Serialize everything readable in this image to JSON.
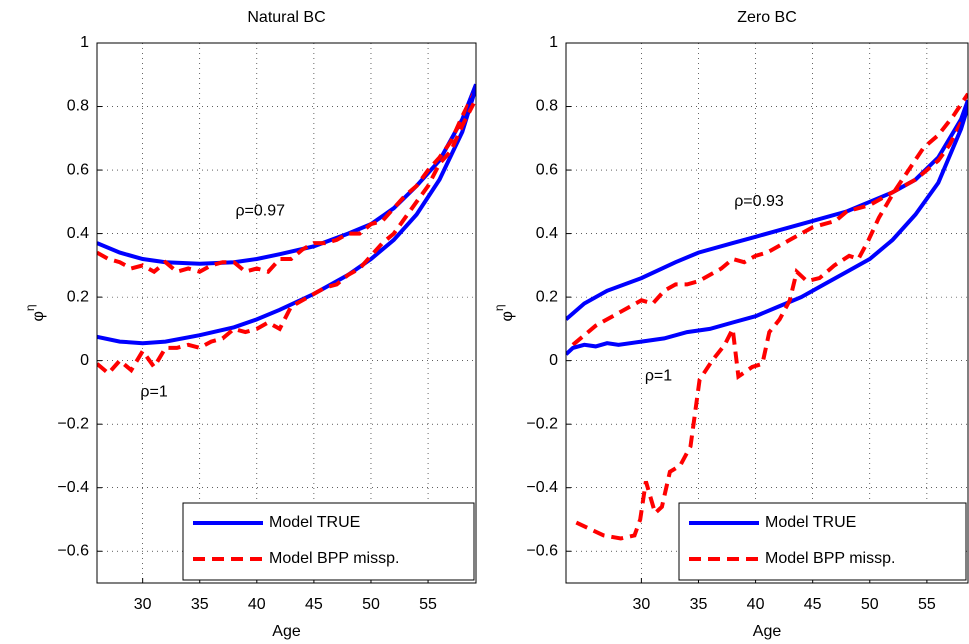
{
  "chart_data": [
    {
      "type": "line",
      "title": "Natural BC",
      "xlabel": "Age",
      "ylabel": "φ",
      "ylabel_superscript": "η",
      "xlim": [
        26,
        59.2
      ],
      "ylim": [
        -0.7,
        1
      ],
      "xticks": [
        30,
        35,
        40,
        45,
        50,
        55
      ],
      "yticks": [
        {
          "value": -0.6,
          "label": "−0.6"
        },
        {
          "value": -0.4,
          "label": "−0.4"
        },
        {
          "value": -0.2,
          "label": "−0.2"
        },
        0,
        0.2,
        0.4,
        0.6,
        0.8,
        1
      ],
      "grid": true,
      "legend": "lower right",
      "annotations": [
        "ρ=0.97",
        "ρ=1"
      ],
      "series": [
        {
          "name": "Model TRUE",
          "color": "#0000ff",
          "linestyle": "solid",
          "x": [
            26,
            28,
            30,
            32,
            35,
            38,
            40,
            42,
            45,
            48,
            50,
            52,
            54,
            56,
            58,
            59.2
          ],
          "values": [
            0.37,
            0.34,
            0.32,
            0.31,
            0.305,
            0.31,
            0.32,
            0.335,
            0.36,
            0.4,
            0.43,
            0.48,
            0.55,
            0.63,
            0.76,
            0.87
          ]
        },
        {
          "name": "Model BPP missp.",
          "color": "#ff0000",
          "linestyle": "dashed",
          "x": [
            26,
            27,
            28,
            29,
            30,
            31,
            32,
            33,
            34,
            35,
            36,
            37,
            38,
            39,
            40,
            41,
            42,
            43,
            44,
            45,
            46,
            47,
            48,
            49,
            50,
            51,
            52,
            53,
            54,
            55,
            56,
            57,
            58,
            59
          ],
          "values": [
            0.34,
            0.32,
            0.31,
            0.29,
            0.3,
            0.28,
            0.31,
            0.28,
            0.29,
            0.28,
            0.3,
            0.31,
            0.31,
            0.28,
            0.29,
            0.28,
            0.32,
            0.32,
            0.35,
            0.37,
            0.37,
            0.38,
            0.4,
            0.4,
            0.43,
            0.44,
            0.48,
            0.52,
            0.55,
            0.6,
            0.64,
            0.69,
            0.77,
            0.84
          ]
        },
        {
          "color": "#0000ff",
          "linestyle": "solid",
          "x": [
            26,
            28,
            30,
            32,
            35,
            38,
            40,
            42,
            45,
            48,
            50,
            52,
            54,
            56,
            58,
            59.2
          ],
          "values": [
            0.075,
            0.06,
            0.055,
            0.06,
            0.08,
            0.105,
            0.13,
            0.16,
            0.21,
            0.27,
            0.32,
            0.38,
            0.46,
            0.57,
            0.72,
            0.86
          ]
        },
        {
          "color": "#ff0000",
          "linestyle": "dashed",
          "x": [
            26,
            27,
            28,
            29,
            30,
            31,
            32,
            33,
            34,
            35,
            36,
            37,
            38,
            39,
            40,
            41,
            42,
            43,
            44,
            45,
            46,
            47,
            48,
            49,
            50,
            51,
            52,
            53,
            54,
            55,
            56,
            57,
            58,
            59
          ],
          "values": [
            -0.01,
            -0.04,
            0,
            -0.03,
            0.03,
            -0.02,
            0.04,
            0.04,
            0.05,
            0.04,
            0.06,
            0.07,
            0.1,
            0.09,
            0.1,
            0.12,
            0.1,
            0.17,
            0.19,
            0.21,
            0.23,
            0.24,
            0.27,
            0.29,
            0.33,
            0.37,
            0.4,
            0.45,
            0.5,
            0.55,
            0.62,
            0.66,
            0.74,
            0.81
          ]
        }
      ]
    },
    {
      "type": "line",
      "title": "Zero BC",
      "xlabel": "Age",
      "ylabel": "φ",
      "ylabel_superscript": "η",
      "xlim": [
        23.4,
        58.6
      ],
      "ylim": [
        -0.7,
        1
      ],
      "xticks": [
        30,
        35,
        40,
        45,
        50,
        55
      ],
      "yticks": [
        {
          "value": -0.6,
          "label": "−0.6"
        },
        {
          "value": -0.4,
          "label": "−0.4"
        },
        {
          "value": -0.2,
          "label": "−0.2"
        },
        0,
        0.2,
        0.4,
        0.6,
        0.8,
        1
      ],
      "grid": true,
      "legend": "lower right",
      "annotations": [
        "ρ=0.93",
        "ρ=1"
      ],
      "series": [
        {
          "name": "Model TRUE",
          "color": "#0000ff",
          "linestyle": "solid",
          "x": [
            23.4,
            25,
            27,
            30,
            33,
            35,
            38,
            40,
            42,
            45,
            48,
            50,
            52,
            54,
            56,
            58,
            58.6
          ],
          "values": [
            0.13,
            0.18,
            0.22,
            0.26,
            0.31,
            0.34,
            0.37,
            0.39,
            0.41,
            0.44,
            0.47,
            0.5,
            0.53,
            0.57,
            0.64,
            0.76,
            0.82
          ]
        },
        {
          "name": "Model BPP missp.",
          "color": "#ff0000",
          "linestyle": "dashed",
          "x": [
            24,
            26,
            28,
            30,
            31,
            32,
            33,
            34,
            35,
            36,
            37,
            38,
            39,
            40,
            41,
            42,
            43,
            44,
            45,
            46,
            47,
            48,
            49,
            50,
            51,
            52,
            53,
            54,
            55,
            56,
            57,
            58
          ],
          "values": [
            0.05,
            0.11,
            0.15,
            0.19,
            0.18,
            0.22,
            0.24,
            0.24,
            0.25,
            0.27,
            0.29,
            0.32,
            0.31,
            0.33,
            0.34,
            0.36,
            0.38,
            0.4,
            0.42,
            0.43,
            0.44,
            0.47,
            0.48,
            0.49,
            0.51,
            0.53,
            0.55,
            0.57,
            0.6,
            0.63,
            0.68,
            0.75
          ]
        },
        {
          "color": "#0000ff",
          "linestyle": "solid",
          "x": [
            23.4,
            24,
            25,
            26,
            27,
            28,
            30,
            32,
            34,
            36,
            38,
            40,
            42,
            44,
            46,
            48,
            50,
            52,
            54,
            56,
            58,
            58.6
          ],
          "values": [
            0.02,
            0.04,
            0.05,
            0.045,
            0.055,
            0.05,
            0.06,
            0.07,
            0.09,
            0.1,
            0.12,
            0.14,
            0.17,
            0.2,
            0.24,
            0.28,
            0.32,
            0.38,
            0.46,
            0.56,
            0.73,
            0.8
          ]
        },
        {
          "color": "#ff0000",
          "linestyle": "dashed",
          "x": [
            24.3,
            26.7,
            28.2,
            29.4,
            29.9,
            30.4,
            31.2,
            31.8,
            32.5,
            33.4,
            34.3,
            35.1,
            36.2,
            37.3,
            38,
            38.5,
            39.7,
            40.6,
            41.2,
            42.1,
            43,
            43.6,
            44.5,
            45.6,
            46.9,
            48.2,
            49,
            49.9,
            50.8,
            52.1,
            53.4,
            54.7,
            56,
            57.3,
            58.6
          ],
          "values": [
            -0.51,
            -0.55,
            -0.56,
            -0.55,
            -0.5,
            -0.38,
            -0.48,
            -0.46,
            -0.35,
            -0.33,
            -0.27,
            -0.06,
            0,
            0.05,
            0.1,
            -0.05,
            -0.02,
            -0.01,
            0.09,
            0.13,
            0.19,
            0.28,
            0.25,
            0.26,
            0.3,
            0.33,
            0.32,
            0.38,
            0.45,
            0.53,
            0.6,
            0.67,
            0.71,
            0.77,
            0.84
          ]
        }
      ]
    }
  ]
}
